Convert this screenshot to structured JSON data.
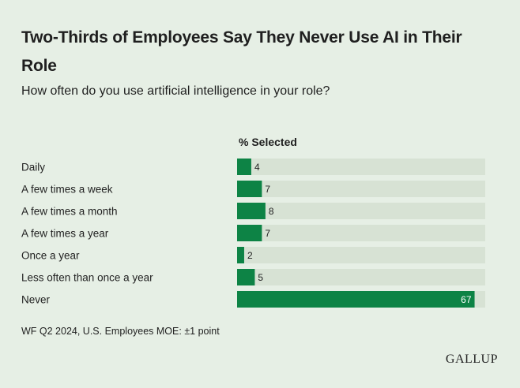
{
  "title": "Two-Thirds of Employees Say They Never Use AI in Their Role",
  "subtitle": "How often do you use artificial intelligence in your role?",
  "column_header": "% Selected",
  "source_note": "WF Q2 2024, U.S. Employees MOE: ±1 point",
  "brand": "GALLUP",
  "colors": {
    "bar": "#0d8345",
    "track": "#d7e2d4",
    "background": "#e6efe5"
  },
  "chart_data": {
    "type": "bar",
    "orientation": "horizontal",
    "categories": [
      "Daily",
      "A few times a week",
      "A few times a month",
      "A few times a year",
      "Once a year",
      "Less often than once a year",
      "Never"
    ],
    "values": [
      4,
      7,
      8,
      7,
      2,
      5,
      67
    ],
    "xlim": [
      0,
      70
    ],
    "grid": false
  }
}
